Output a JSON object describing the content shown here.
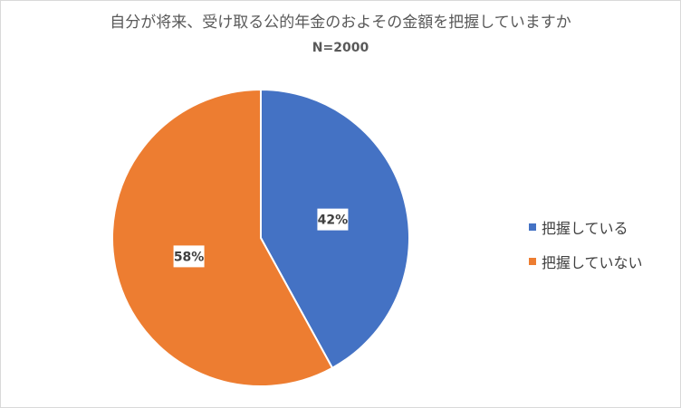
{
  "chart_data": {
    "type": "pie",
    "title": "自分が将来、受け取る公的年金のおよその金額を把握していますか",
    "subtitle": "N=2000",
    "categories": [
      "把握している",
      "把握していない"
    ],
    "values": [
      42,
      58
    ],
    "data_labels": [
      "42%",
      "58%"
    ],
    "colors": [
      "#4472c4",
      "#ed7d31"
    ],
    "legend_position": "right"
  }
}
